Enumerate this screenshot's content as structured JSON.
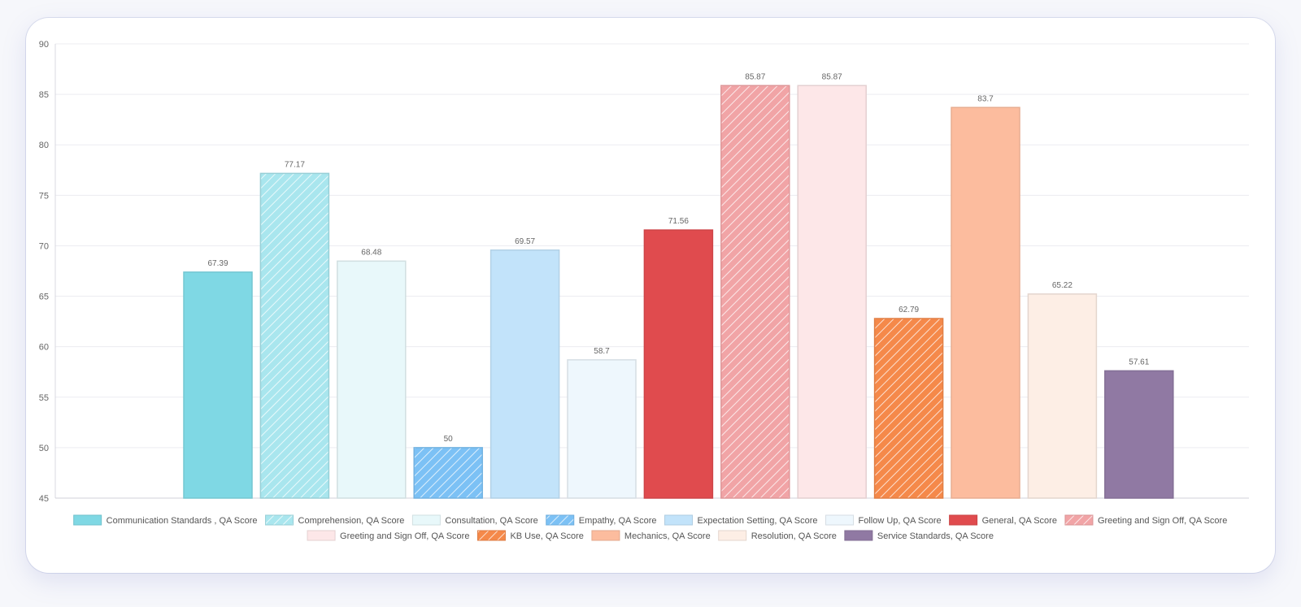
{
  "chart_data": {
    "type": "bar",
    "ylim": [
      45,
      90
    ],
    "yticks": [
      "45",
      "50",
      "55",
      "60",
      "65",
      "70",
      "75",
      "80",
      "85",
      "90"
    ],
    "grid": true,
    "legend_position": "bottom",
    "series": [
      {
        "name": "Communication Standards , QA Score",
        "value": 67.39,
        "label": "67.39",
        "color": "#7fd8e4",
        "hatch": false,
        "light": false
      },
      {
        "name": "Comprehension, QA Score",
        "value": 77.17,
        "label": "77.17",
        "color": "#a9e6ee",
        "hatch": true,
        "light": true
      },
      {
        "name": "Consultation, QA Score",
        "value": 68.48,
        "label": "68.48",
        "color": "#e8f8fa",
        "hatch": false,
        "light": true
      },
      {
        "name": "Empathy, QA Score",
        "value": 50,
        "label": "50",
        "color": "#7cc1f5",
        "hatch": true,
        "light": false
      },
      {
        "name": "Expectation Setting, QA Score",
        "value": 69.57,
        "label": "69.57",
        "color": "#c2e3fa",
        "hatch": false,
        "light": false
      },
      {
        "name": "Follow Up, QA Score",
        "value": 58.7,
        "label": "58.7",
        "color": "#eef7fd",
        "hatch": false,
        "light": true
      },
      {
        "name": "General, QA Score",
        "value": 71.56,
        "label": "71.56",
        "color": "#e04b4e",
        "hatch": false,
        "light": false
      },
      {
        "name": "Greeting and Sign Off, QA Score",
        "value": 85.87,
        "label": "85.87",
        "color": "#f1a4a6",
        "hatch": true,
        "light": false
      },
      {
        "name": "Greeting and Sign Off, QA Score",
        "value": 85.87,
        "label": "85.87",
        "color": "#fde7e8",
        "hatch": false,
        "light": true
      },
      {
        "name": "KB Use, QA Score",
        "value": 62.79,
        "label": "62.79",
        "color": "#f5894a",
        "hatch": true,
        "light": false
      },
      {
        "name": "Mechanics, QA Score",
        "value": 83.7,
        "label": "83.7",
        "color": "#fcbc9e",
        "hatch": false,
        "light": false
      },
      {
        "name": "Resolution, QA Score",
        "value": 65.22,
        "label": "65.22",
        "color": "#fdeee5",
        "hatch": false,
        "light": true
      },
      {
        "name": "Service Standards, QA Score",
        "value": 57.61,
        "label": "57.61",
        "color": "#9079a3",
        "hatch": false,
        "light": false
      }
    ]
  }
}
